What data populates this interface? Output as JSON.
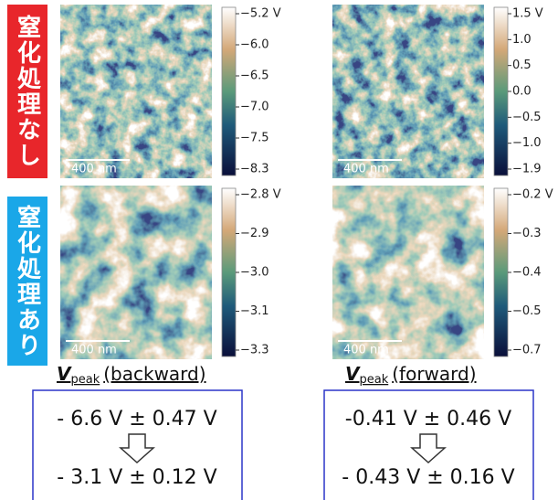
{
  "rows": [
    {
      "label": "窒化処理なし"
    },
    {
      "label": "窒化処理あり"
    }
  ],
  "panels": [
    {
      "colorbar": [
        "−5.2 V",
        "−6.0",
        "−6.5",
        "−7.0",
        "−7.5",
        "−8.3"
      ],
      "scale_bar": "400 nm"
    },
    {
      "colorbar": [
        "1.5 V",
        "1.0",
        "0.5",
        "0.0",
        "−0.5",
        "−1.0",
        "−1.9"
      ],
      "scale_bar": "400 nm"
    },
    {
      "colorbar": [
        "−2.8 V",
        "−2.9",
        "−3.0",
        "−3.1",
        "−3.3"
      ],
      "scale_bar": "400 nm"
    },
    {
      "colorbar": [
        "−0.2 V",
        "−0.3",
        "−0.4",
        "−0.5",
        "−0.7"
      ],
      "scale_bar": "400 nm"
    }
  ],
  "columns": [
    {
      "symbol": "V",
      "subscript": "peak",
      "mode": "(backward)",
      "before": "- 6.6 V ± 0.47 V",
      "after": "- 3.1 V ± 0.12 V"
    },
    {
      "symbol": "V",
      "subscript": "peak",
      "mode": "(forward)",
      "before": "-0.41 V ± 0.46 V",
      "after": "- 0.43 V ± 0.16 V"
    }
  ]
}
